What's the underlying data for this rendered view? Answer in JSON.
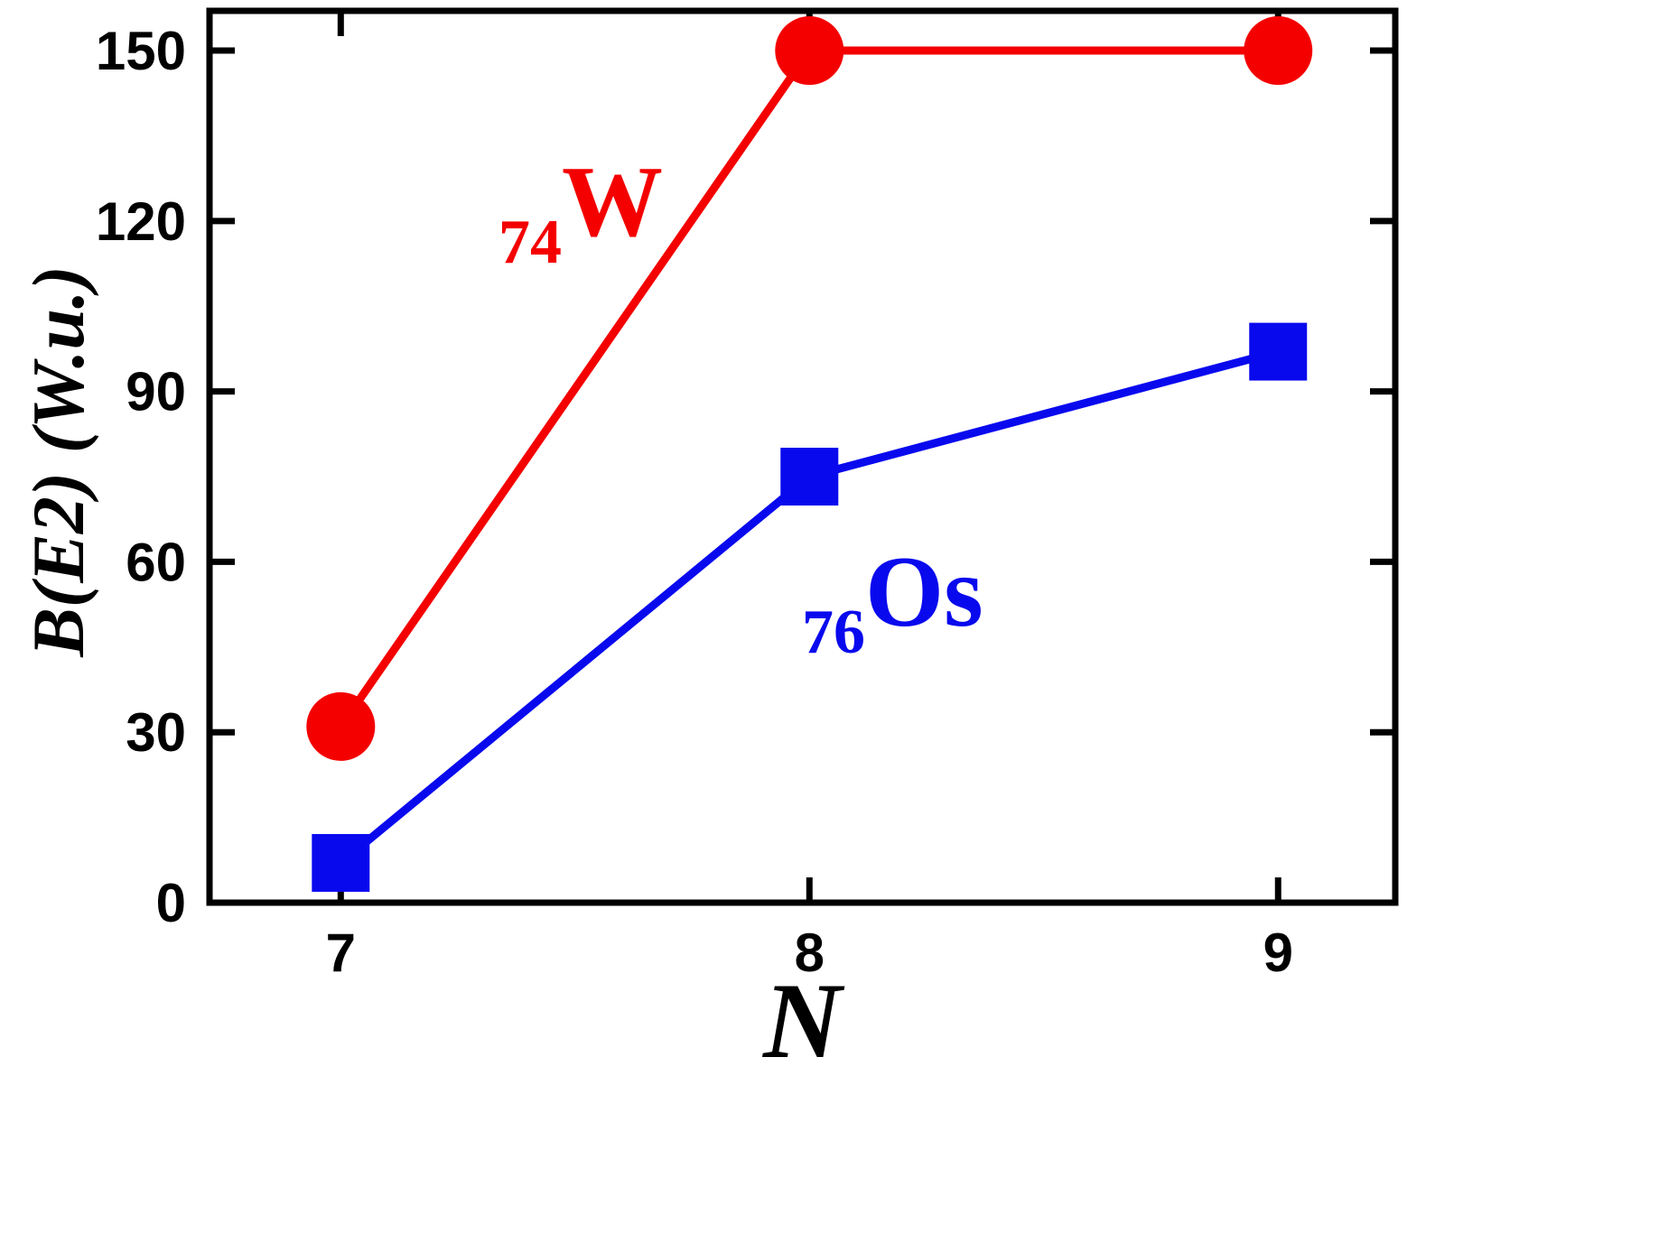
{
  "chart_data": {
    "type": "line",
    "title": "",
    "xlabel": "N",
    "ylabel": "B(E2) (W.u.)",
    "x": [
      7,
      8,
      9
    ],
    "x_ticks": [
      "7",
      "8",
      "9"
    ],
    "y_ticks": [
      "0",
      "30",
      "60",
      "90",
      "120",
      "150"
    ],
    "y_tick_values": [
      0,
      30,
      60,
      90,
      120,
      150
    ],
    "xlim": [
      6.72,
      9.25
    ],
    "ylim": [
      0,
      157
    ],
    "grid": false,
    "legend_position": "inline-annotations",
    "series": [
      {
        "name": "74W",
        "label_subscript": "74",
        "label_symbol": "W",
        "color": "#f40000",
        "marker": "circle",
        "marker_radius": 38,
        "values": [
          31,
          150,
          150
        ]
      },
      {
        "name": "76Os",
        "label_subscript": "76",
        "label_symbol": "Os",
        "color": "#0909ee",
        "marker": "square",
        "marker_size": 64,
        "values": [
          7,
          75,
          97
        ]
      }
    ]
  },
  "frame": {
    "color": "#000000",
    "background": "#ffffff"
  }
}
